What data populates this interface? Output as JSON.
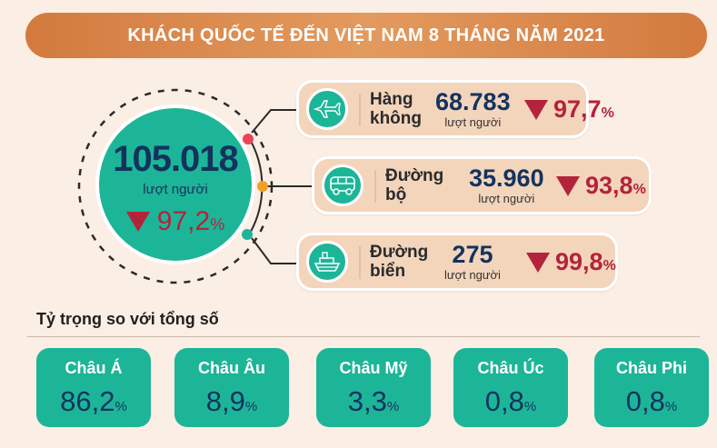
{
  "title": "KHÁCH QUỐC TẾ ĐẾN VIỆT NAM 8 THÁNG NĂM 2021",
  "total": {
    "value": "105.018",
    "unit": "lượt người",
    "change": "97,2",
    "percent_sign": "%",
    "direction": "down"
  },
  "modes": [
    {
      "label_line1": "Hàng",
      "label_line2": "không",
      "value": "68.783",
      "unit": "lượt người",
      "change": "97,7",
      "percent_sign": "%",
      "icon": "airplane-icon",
      "dot_color": "#e8455a"
    },
    {
      "label_line1": "Đường",
      "label_line2": "bộ",
      "value": "35.960",
      "unit": "lượt người",
      "change": "93,8",
      "percent_sign": "%",
      "icon": "bus-icon",
      "dot_color": "#f2a024"
    },
    {
      "label_line1": "Đường",
      "label_line2": "biển",
      "value": "275",
      "unit": "lượt người",
      "change": "99,8",
      "percent_sign": "%",
      "icon": "ship-icon",
      "dot_color": "#1db598"
    }
  ],
  "share": {
    "heading": "Tỷ trọng so với tổng số",
    "items": [
      {
        "label": "Châu Á",
        "value": "86,2",
        "percent_sign": "%"
      },
      {
        "label": "Châu Âu",
        "value": "8,9",
        "percent_sign": "%"
      },
      {
        "label": "Châu Mỹ",
        "value": "3,3",
        "percent_sign": "%"
      },
      {
        "label": "Châu Úc",
        "value": "0,8",
        "percent_sign": "%"
      },
      {
        "label": "Châu Phi",
        "value": "0,8",
        "percent_sign": "%"
      }
    ]
  },
  "colors": {
    "accent": "#1db598",
    "title_bar": "#d9864a",
    "decrease": "#b3243c",
    "number": "#13335e",
    "background": "#fbeee4"
  }
}
